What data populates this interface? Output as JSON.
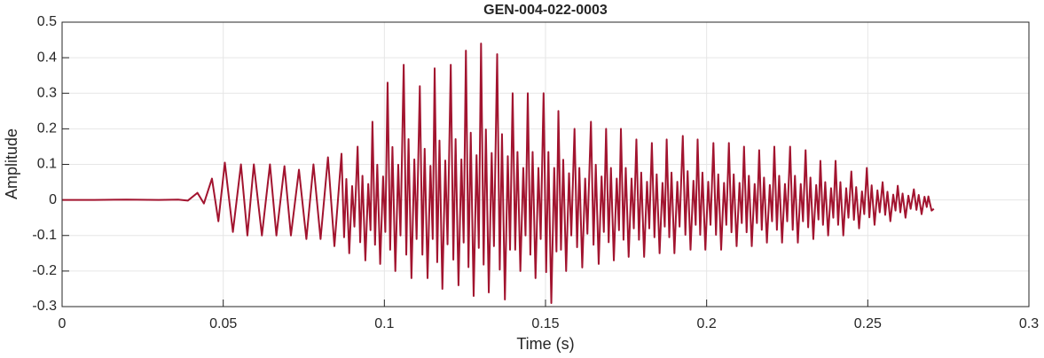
{
  "chart_data": {
    "type": "line",
    "title": "GEN-004-022-0003",
    "xlabel": "Time (s)",
    "ylabel": "Amplitude",
    "color": "#A2142F",
    "xlim": [
      0,
      0.3
    ],
    "ylim": [
      -0.3,
      0.5
    ],
    "xticks": [
      0,
      0.05,
      0.1,
      0.15,
      0.2,
      0.25,
      0.3
    ],
    "yticks": [
      -0.3,
      -0.2,
      -0.1,
      0,
      0.1,
      0.2,
      0.3,
      0.4,
      0.5
    ],
    "grid": true,
    "x": [
      0,
      0.01,
      0.02,
      0.03,
      0.036,
      0.039,
      0.042,
      0.044,
      0.0465,
      0.0485,
      0.0505,
      0.053,
      0.0555,
      0.0575,
      0.0595,
      0.062,
      0.0645,
      0.0665,
      0.069,
      0.071,
      0.0735,
      0.0758,
      0.078,
      0.0802,
      0.0825,
      0.0845,
      0.0867,
      0.0875,
      0.0882,
      0.0891,
      0.09,
      0.0907,
      0.0917,
      0.0925,
      0.0932,
      0.0941,
      0.095,
      0.0957,
      0.0963,
      0.0971,
      0.0978,
      0.0987,
      0.0996,
      0.1003,
      0.101,
      0.1018,
      0.1025,
      0.1034,
      0.1043,
      0.105,
      0.106,
      0.1068,
      0.1075,
      0.1084,
      0.1093,
      0.11,
      0.111,
      0.1118,
      0.1125,
      0.1134,
      0.1143,
      0.115,
      0.1156,
      0.1164,
      0.1171,
      0.118,
      0.1189,
      0.1196,
      0.1206,
      0.1214,
      0.1221,
      0.123,
      0.1239,
      0.1246,
      0.1253,
      0.1261,
      0.1268,
      0.1277,
      0.1286,
      0.1293,
      0.13,
      0.1308,
      0.1315,
      0.1324,
      0.1333,
      0.134,
      0.135,
      0.1358,
      0.1365,
      0.1374,
      0.1383,
      0.139,
      0.1398,
      0.1406,
      0.1413,
      0.1422,
      0.1431,
      0.1438,
      0.1445,
      0.1453,
      0.146,
      0.1469,
      0.1478,
      0.1485,
      0.1494,
      0.1502,
      0.1509,
      0.1518,
      0.1527,
      0.1534,
      0.154,
      0.1548,
      0.1555,
      0.1564,
      0.1573,
      0.158,
      0.159,
      0.1598,
      0.1605,
      0.1614,
      0.1623,
      0.163,
      0.1641,
      0.1649,
      0.1656,
      0.1665,
      0.1674,
      0.1681,
      0.1688,
      0.1696,
      0.1703,
      0.1712,
      0.1721,
      0.1728,
      0.1734,
      0.1742,
      0.1749,
      0.1758,
      0.1767,
      0.1774,
      0.1782,
      0.179,
      0.1797,
      0.1806,
      0.1815,
      0.1822,
      0.183,
      0.1838,
      0.1845,
      0.1854,
      0.1863,
      0.187,
      0.1876,
      0.1884,
      0.1891,
      0.19,
      0.1909,
      0.1916,
      0.1926,
      0.1934,
      0.1941,
      0.195,
      0.1959,
      0.1966,
      0.1972,
      0.198,
      0.1987,
      0.1996,
      0.2005,
      0.2012,
      0.2021,
      0.2029,
      0.2036,
      0.2045,
      0.2054,
      0.2061,
      0.2069,
      0.2077,
      0.2084,
      0.2093,
      0.2102,
      0.2109,
      0.2116,
      0.2124,
      0.2131,
      0.214,
      0.2149,
      0.2156,
      0.2163,
      0.2171,
      0.2178,
      0.2187,
      0.2196,
      0.2203,
      0.221,
      0.2218,
      0.2225,
      0.2234,
      0.2243,
      0.225,
      0.2259,
      0.2267,
      0.2274,
      0.2283,
      0.2292,
      0.2299,
      0.2307,
      0.2315,
      0.2322,
      0.2331,
      0.234,
      0.2347,
      0.2353,
      0.2361,
      0.2368,
      0.2377,
      0.2386,
      0.2393,
      0.24,
      0.2408,
      0.2415,
      0.2424,
      0.2433,
      0.244,
      0.2449,
      0.2457,
      0.2464,
      0.2473,
      0.2482,
      0.2489,
      0.2497,
      0.2505,
      0.2512,
      0.2521,
      0.253,
      0.2537,
      0.2546,
      0.2554,
      0.2561,
      0.257,
      0.2579,
      0.2586,
      0.2593,
      0.2601,
      0.2608,
      0.2617,
      0.2626,
      0.2633,
      0.2643,
      0.2651,
      0.2658,
      0.2667,
      0.2676,
      0.2683,
      0.2688,
      0.2698,
      0.2705
    ],
    "y": [
      0,
      0,
      0.001,
      0,
      0.001,
      -0.002,
      0.02,
      -0.01,
      0.06,
      -0.06,
      0.105,
      -0.09,
      0.1,
      -0.1,
      0.1,
      -0.1,
      0.1,
      -0.1,
      0.095,
      -0.1,
      0.085,
      -0.11,
      0.1,
      -0.11,
      0.12,
      -0.13,
      0.13,
      -0.105,
      0.059,
      -0.15,
      0.039,
      -0.075,
      0.15,
      -0.119,
      0.068,
      -0.17,
      0.045,
      -0.085,
      0.22,
      -0.126,
      0.099,
      -0.18,
      0.066,
      -0.09,
      0.33,
      -0.14,
      0.149,
      -0.2,
      0.099,
      -0.1,
      0.38,
      -0.154,
      0.171,
      -0.22,
      0.114,
      -0.11,
      0.32,
      -0.154,
      0.144,
      -0.22,
      0.096,
      -0.11,
      0.37,
      -0.175,
      0.167,
      -0.25,
      0.111,
      -0.125,
      0.38,
      -0.168,
      0.171,
      -0.24,
      0.114,
      -0.12,
      0.42,
      -0.189,
      0.189,
      -0.27,
      0.126,
      -0.135,
      0.44,
      -0.182,
      0.198,
      -0.26,
      0.132,
      -0.13,
      0.41,
      -0.196,
      0.185,
      -0.28,
      0.123,
      -0.14,
      0.3,
      -0.14,
      0.135,
      -0.2,
      0.09,
      -0.1,
      0.3,
      -0.154,
      0.135,
      -0.22,
      0.09,
      -0.11,
      0.3,
      -0.203,
      0.135,
      -0.29,
      0.09,
      -0.145,
      0.25,
      -0.14,
      0.113,
      -0.2,
      0.075,
      -0.1,
      0.2,
      -0.133,
      0.09,
      -0.19,
      0.06,
      -0.095,
      0.22,
      -0.126,
      0.099,
      -0.18,
      0.066,
      -0.09,
      0.2,
      -0.119,
      0.09,
      -0.17,
      0.06,
      -0.085,
      0.2,
      -0.112,
      0.09,
      -0.16,
      0.06,
      -0.08,
      0.17,
      -0.112,
      0.077,
      -0.16,
      0.051,
      -0.08,
      0.16,
      -0.105,
      0.072,
      -0.15,
      0.048,
      -0.075,
      0.17,
      -0.105,
      0.077,
      -0.15,
      0.051,
      -0.075,
      0.18,
      -0.098,
      0.081,
      -0.14,
      0.054,
      -0.07,
      0.17,
      -0.098,
      0.077,
      -0.14,
      0.051,
      -0.07,
      0.16,
      -0.098,
      0.072,
      -0.14,
      0.048,
      -0.07,
      0.16,
      -0.091,
      0.072,
      -0.13,
      0.048,
      -0.065,
      0.15,
      -0.091,
      0.068,
      -0.13,
      0.045,
      -0.065,
      0.14,
      -0.084,
      0.063,
      -0.12,
      0.042,
      -0.06,
      0.15,
      -0.084,
      0.068,
      -0.12,
      0.045,
      -0.06,
      0.15,
      -0.084,
      0.068,
      -0.12,
      0.045,
      -0.06,
      0.14,
      -0.077,
      0.063,
      -0.11,
      0.042,
      -0.055,
      0.11,
      -0.07,
      0.05,
      -0.1,
      0.033,
      -0.05,
      0.11,
      -0.07,
      0.05,
      -0.1,
      0.033,
      -0.05,
      0.08,
      -0.056,
      0.036,
      -0.08,
      0.024,
      -0.04,
      0.09,
      -0.049,
      0.041,
      -0.07,
      0.027,
      -0.035,
      0.05,
      -0.042,
      0.023,
      -0.06,
      0.015,
      -0.03,
      0.04,
      -0.035,
      0.018,
      -0.05,
      0.012,
      -0.025,
      0.03,
      -0.028,
      0.014,
      -0.04,
      0.009,
      -0.02,
      0.01,
      -0.03,
      -0.025
    ]
  }
}
